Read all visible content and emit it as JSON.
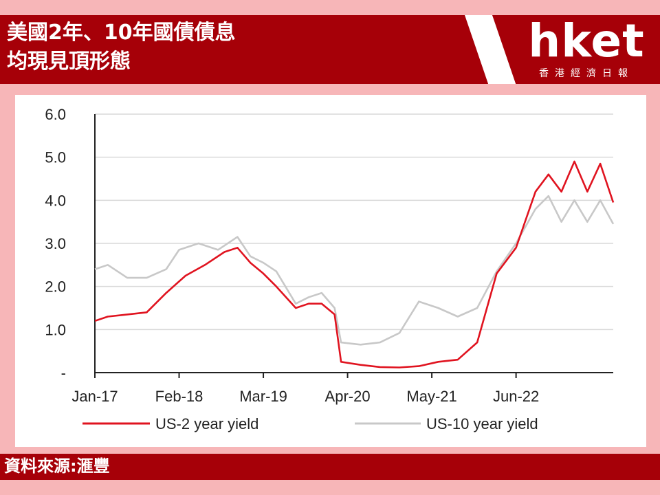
{
  "header": {
    "title_line1": "美國2年、10年國債債息",
    "title_line2": "均現見頂形態"
  },
  "logo": {
    "word": "hket",
    "subtitle": "香港經濟日報"
  },
  "footer": {
    "source": "資料來源:滙豐"
  },
  "colors": {
    "background": "#f7b6b8",
    "banner": "#a60008",
    "series_2y": "#e0131f",
    "series_10y": "#c8c8c8"
  },
  "chart_data": {
    "type": "line",
    "title": "",
    "xlabel": "",
    "ylabel": "",
    "x_ticks": [
      "Jan-17",
      "Feb-18",
      "Mar-19",
      "Apr-20",
      "May-21",
      "Jun-22"
    ],
    "y_ticks": [
      "-",
      "1.0",
      "2.0",
      "3.0",
      "4.0",
      "5.0",
      "6.0"
    ],
    "ylim": [
      0,
      6
    ],
    "xlim": [
      "2017-01",
      "2023-09"
    ],
    "grid": "horizontal",
    "legend_position": "bottom",
    "series": [
      {
        "name": "US-2 year yield",
        "color": "#e0131f",
        "points": [
          [
            "2017-01",
            1.2
          ],
          [
            "2017-03",
            1.3
          ],
          [
            "2017-06",
            1.35
          ],
          [
            "2017-09",
            1.4
          ],
          [
            "2017-12",
            1.85
          ],
          [
            "2018-03",
            2.25
          ],
          [
            "2018-06",
            2.5
          ],
          [
            "2018-09",
            2.8
          ],
          [
            "2018-11",
            2.9
          ],
          [
            "2019-01",
            2.55
          ],
          [
            "2019-03",
            2.3
          ],
          [
            "2019-05",
            2.0
          ],
          [
            "2019-08",
            1.5
          ],
          [
            "2019-10",
            1.6
          ],
          [
            "2019-12",
            1.6
          ],
          [
            "2020-02",
            1.35
          ],
          [
            "2020-03",
            0.25
          ],
          [
            "2020-06",
            0.18
          ],
          [
            "2020-09",
            0.13
          ],
          [
            "2020-12",
            0.12
          ],
          [
            "2021-03",
            0.15
          ],
          [
            "2021-06",
            0.25
          ],
          [
            "2021-09",
            0.3
          ],
          [
            "2021-12",
            0.7
          ],
          [
            "2022-03",
            2.3
          ],
          [
            "2022-06",
            2.9
          ],
          [
            "2022-09",
            4.2
          ],
          [
            "2022-11",
            4.6
          ],
          [
            "2023-01",
            4.2
          ],
          [
            "2023-03",
            4.9
          ],
          [
            "2023-05",
            4.2
          ],
          [
            "2023-07",
            4.85
          ],
          [
            "2023-09",
            3.95
          ]
        ]
      },
      {
        "name": "US-10 year yield",
        "color": "#c8c8c8",
        "points": [
          [
            "2017-01",
            2.4
          ],
          [
            "2017-03",
            2.5
          ],
          [
            "2017-06",
            2.2
          ],
          [
            "2017-09",
            2.2
          ],
          [
            "2017-12",
            2.4
          ],
          [
            "2018-02",
            2.85
          ],
          [
            "2018-05",
            3.0
          ],
          [
            "2018-08",
            2.85
          ],
          [
            "2018-11",
            3.15
          ],
          [
            "2019-01",
            2.7
          ],
          [
            "2019-03",
            2.55
          ],
          [
            "2019-05",
            2.35
          ],
          [
            "2019-08",
            1.6
          ],
          [
            "2019-10",
            1.75
          ],
          [
            "2019-12",
            1.85
          ],
          [
            "2020-02",
            1.5
          ],
          [
            "2020-03",
            0.7
          ],
          [
            "2020-06",
            0.65
          ],
          [
            "2020-09",
            0.7
          ],
          [
            "2020-12",
            0.92
          ],
          [
            "2021-03",
            1.65
          ],
          [
            "2021-06",
            1.5
          ],
          [
            "2021-09",
            1.3
          ],
          [
            "2021-12",
            1.5
          ],
          [
            "2022-03",
            2.35
          ],
          [
            "2022-06",
            3.0
          ],
          [
            "2022-09",
            3.8
          ],
          [
            "2022-11",
            4.1
          ],
          [
            "2023-01",
            3.5
          ],
          [
            "2023-03",
            4.0
          ],
          [
            "2023-05",
            3.5
          ],
          [
            "2023-07",
            4.0
          ],
          [
            "2023-09",
            3.45
          ]
        ]
      }
    ]
  }
}
